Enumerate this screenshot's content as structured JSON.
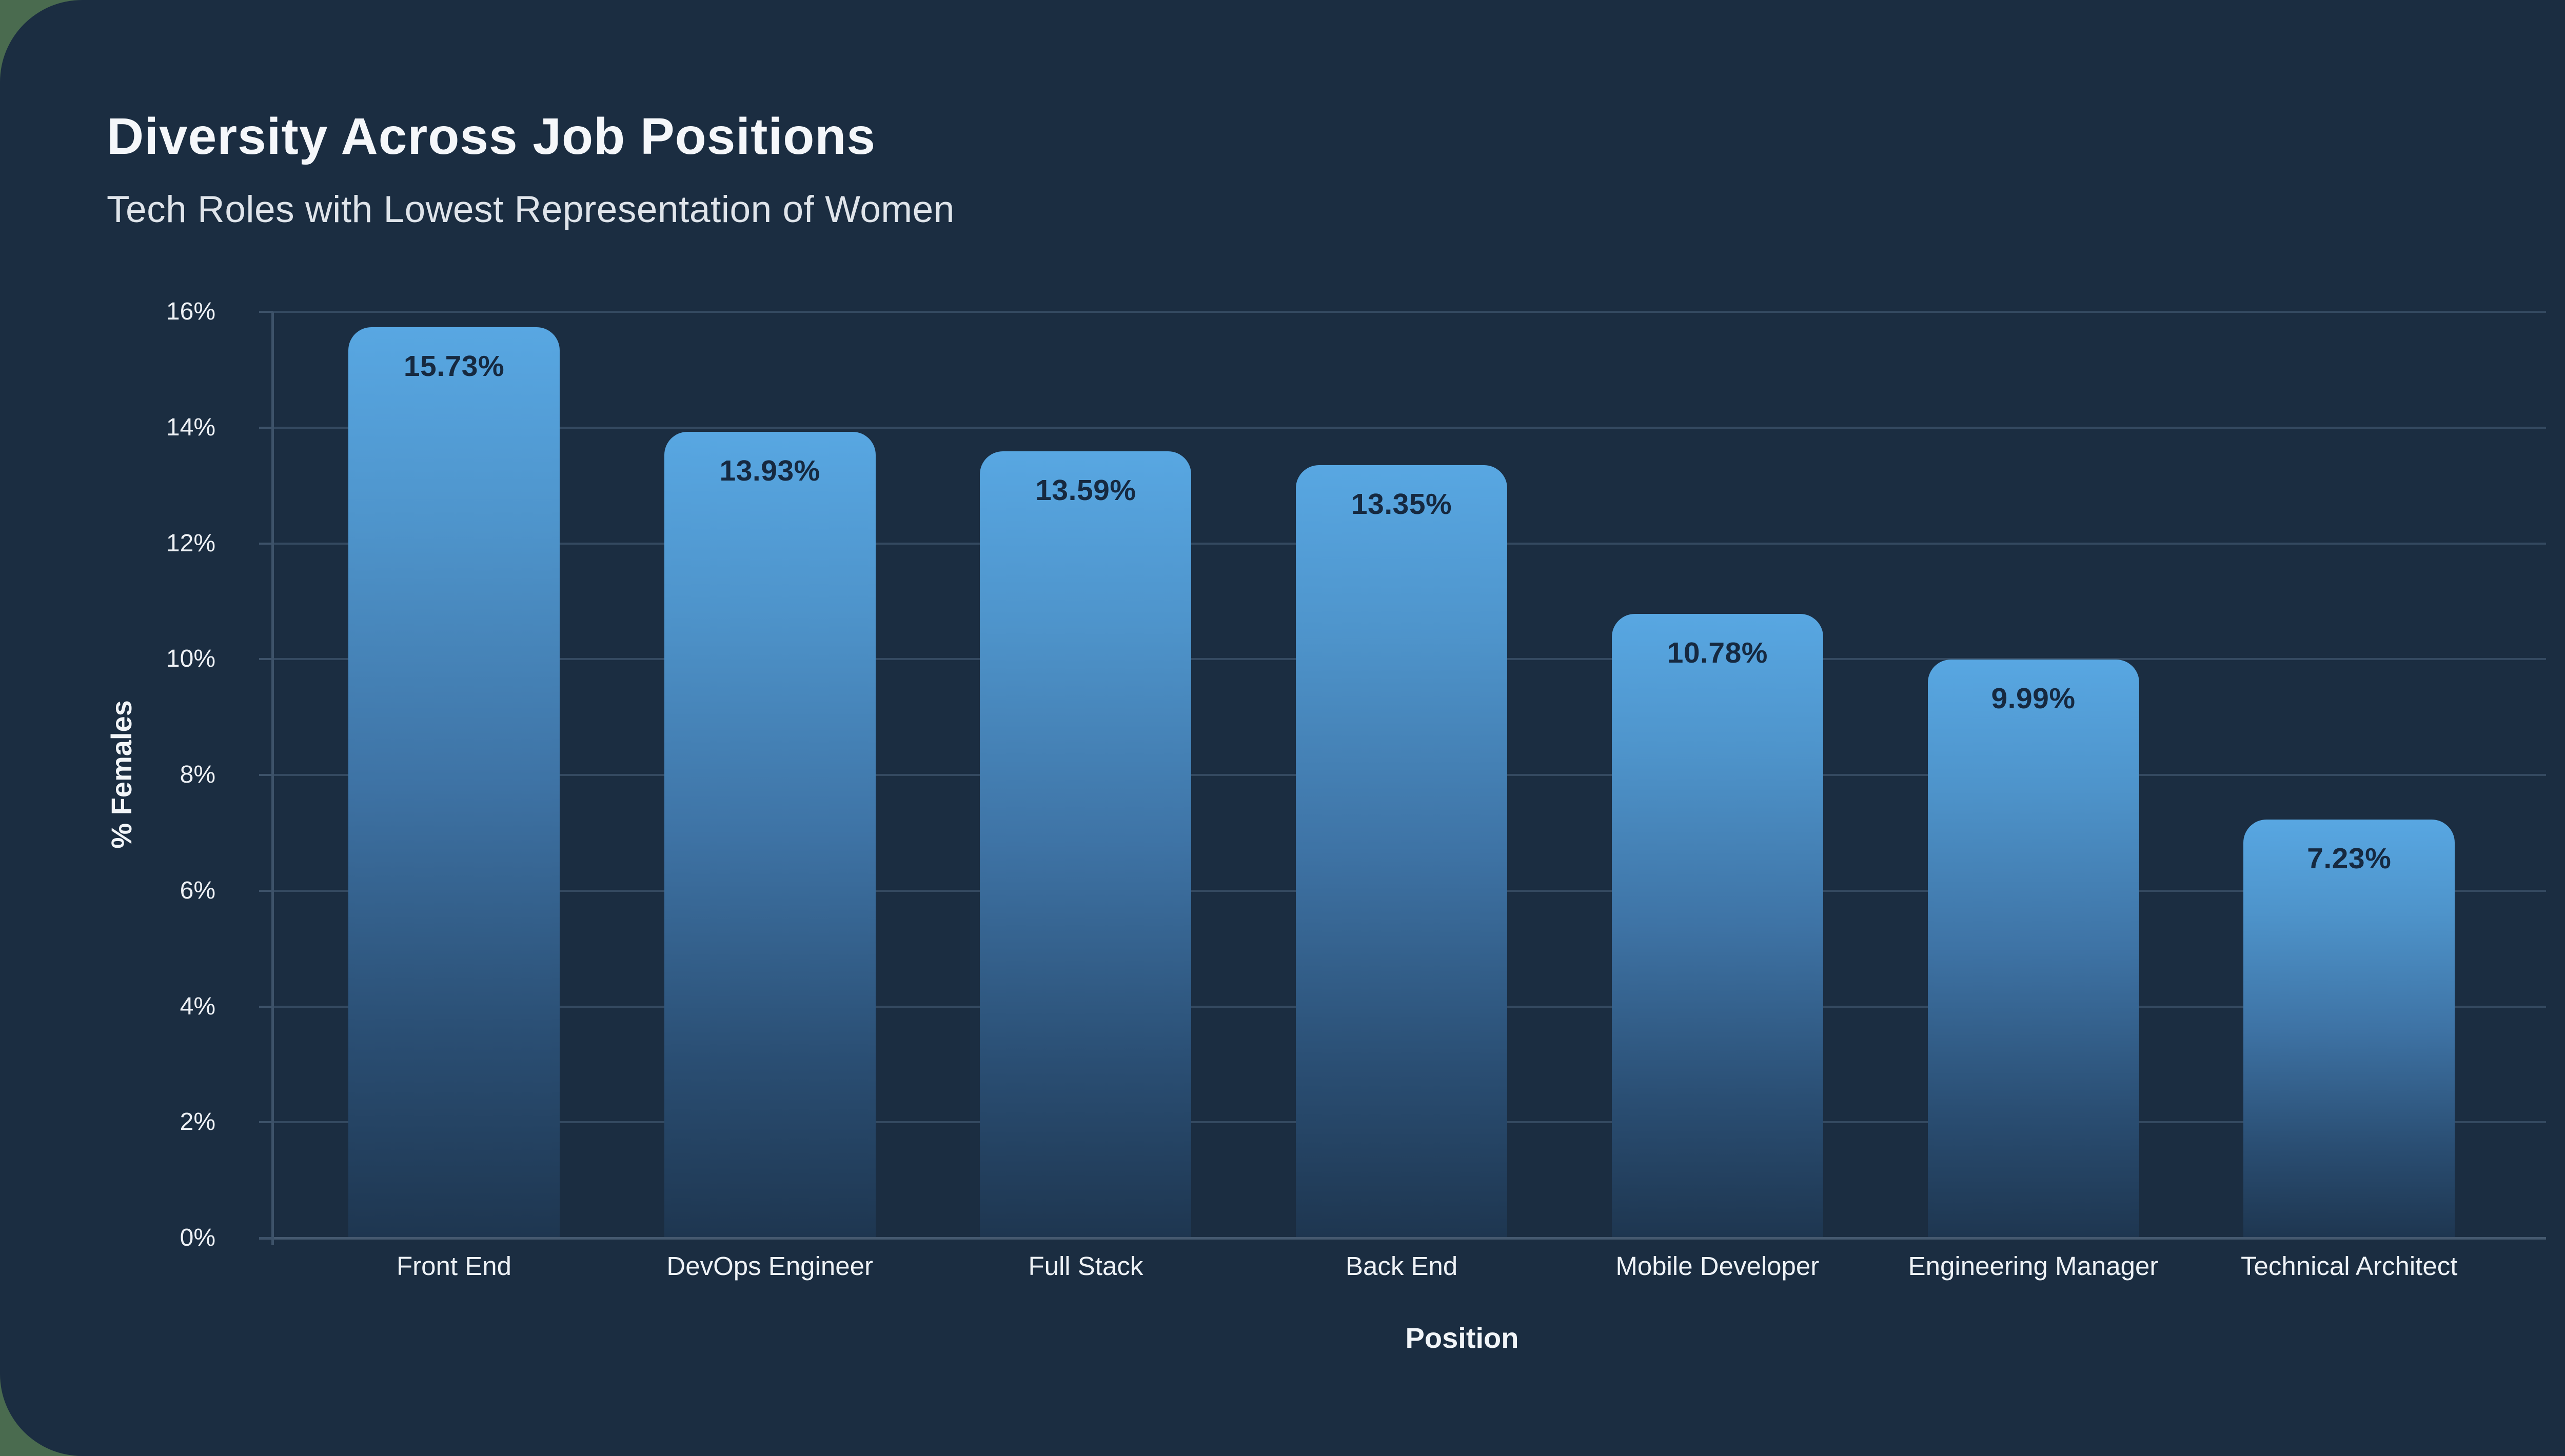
{
  "page": {
    "backdrop_color": "#4a6b4f",
    "card_color": "#1b2d41",
    "gridline_color": "#344960",
    "axis_line_color": "#3d5269"
  },
  "header": {
    "title": "Diversity Across Job Positions",
    "subtitle": "Tech Roles with Lowest Representation of Women"
  },
  "chart_data": {
    "type": "bar",
    "title": "Diversity Across Job Positions",
    "subtitle": "Tech Roles with Lowest Representation of Women",
    "categories": [
      "Front End",
      "DevOps Engineer",
      "Full Stack",
      "Back End",
      "Mobile Developer",
      "Engineering Manager",
      "Technical Architect"
    ],
    "values": [
      15.73,
      13.93,
      13.59,
      13.35,
      10.78,
      9.99,
      7.23
    ],
    "value_labels": [
      "15.73%",
      "13.93%",
      "13.59%",
      "13.35%",
      "10.78%",
      "9.99%",
      "7.23%"
    ],
    "xlabel": "Position",
    "ylabel": "% Females",
    "ylim": [
      0,
      16
    ],
    "ytick_step": 2,
    "ytick_labels": [
      "0%",
      "2%",
      "4%",
      "6%",
      "8%",
      "10%",
      "12%",
      "14%",
      "16%"
    ],
    "grid": true,
    "legend_position": "none",
    "bar_color_top": "#58a7e2",
    "bar_color_mid": "#3e73a5",
    "bar_color_bottom": "#1e3650",
    "bar_label_color": "#162940"
  }
}
